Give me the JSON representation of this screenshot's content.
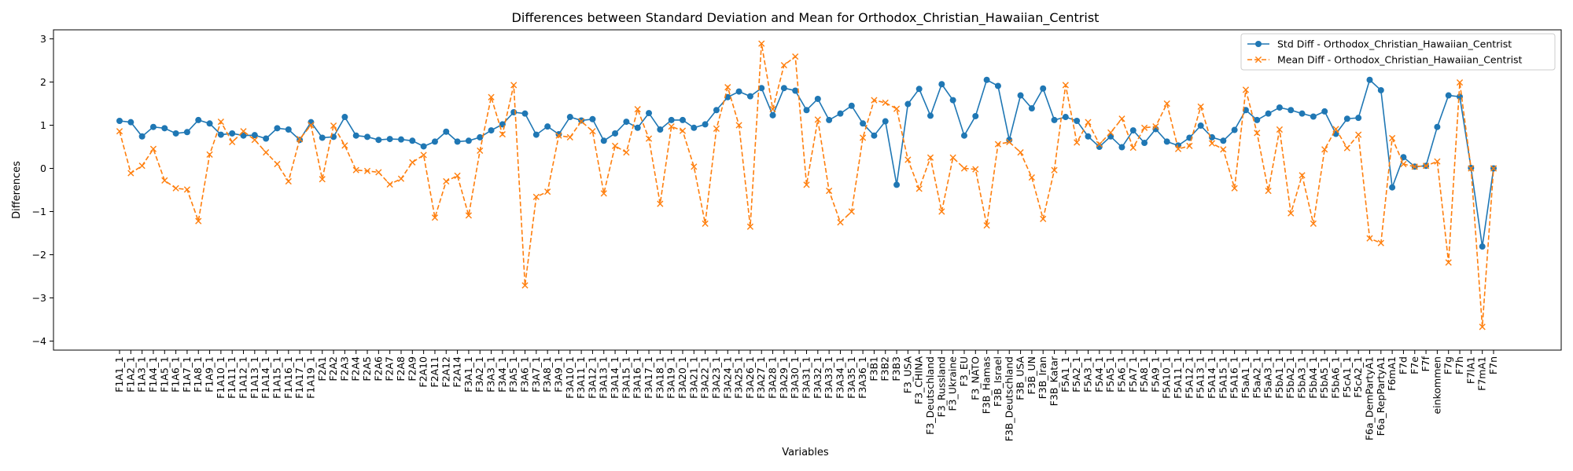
{
  "chart_data": {
    "type": "line",
    "title": "Differences between Standard Deviation and Mean for Orthodox_Christian_Hawaiian_Centrist",
    "xlabel": "Variables",
    "ylabel": "Differences",
    "ylim": [
      -4,
      3
    ],
    "yticks": [
      -4,
      -3,
      -2,
      -1,
      0,
      1,
      2,
      3
    ],
    "legend_position": "top-right",
    "grid": false,
    "categories": [
      "F1A1_1",
      "F1A2_1",
      "F1A3_1",
      "F1A4_1",
      "F1A5_1",
      "F1A6_1",
      "F1A7_1",
      "F1A8_1",
      "F1A9_1",
      "F1A10_1",
      "F1A11_1",
      "F1A12_1",
      "F1A13_1",
      "F1A14_1",
      "F1A15_1",
      "F1A16_1",
      "F1A17_1",
      "F1A19_1",
      "F2A1",
      "F2A2",
      "F2A3",
      "F2A4",
      "F2A5",
      "F2A6",
      "F2A7",
      "F2A8",
      "F2A9",
      "F2A10",
      "F2A11",
      "F2A12",
      "F2A14",
      "F3A1_1",
      "F3A2_1",
      "F3A3_1",
      "F3A4_1",
      "F3A5_1",
      "F3A6_1",
      "F3A7_1",
      "F3A8_1",
      "F3A9_1",
      "F3A10_1",
      "F3A11_1",
      "F3A12_1",
      "F3A13_1",
      "F3A14_1",
      "F3A15_1",
      "F3A16_1",
      "F3A17_1",
      "F3A18_1",
      "F3A19_1",
      "F3A20_1",
      "F3A21_1",
      "F3A22_1",
      "F3A23_1",
      "F3A24_1",
      "F3A25_1",
      "F3A26_1",
      "F3A27_1",
      "F3A28_1",
      "F3A29_1",
      "F3A30_1",
      "F3A31_1",
      "F3A32_1",
      "F3A33_1",
      "F3A34_1",
      "F3A35_1",
      "F3A36_1",
      "F3B1",
      "F3B2",
      "F3B3",
      "F3_USA",
      "F3_CHINA",
      "F3_Deutschland",
      "F3_Russland",
      "F3_Ukraine",
      "F3_EU",
      "F3_NATO",
      "F3B_Hamas",
      "F3B_Israel",
      "F3B_Deutschland",
      "F3B_USA",
      "F3B_UN",
      "F3B_Iran",
      "F3B_Katar",
      "F5A1_1",
      "F5A2_1",
      "F5A3_1",
      "F5A4_1",
      "F5A5_1",
      "F5A6_1",
      "F5A7_1",
      "F5A8_1",
      "F5A9_1",
      "F5A10_1",
      "F5A11_1",
      "F5A12_1",
      "F5A13_1",
      "F5A14_1",
      "F5A15_1",
      "F5A16_1",
      "F5aA1_1",
      "F5aA2_1",
      "F5aA3_1",
      "F5bA1_1",
      "F5bA2_1",
      "F5bA3_1",
      "F5bA4_1",
      "F5bA5_1",
      "F5bA6_1",
      "F5cA1_1",
      "F5cA2_1",
      "F6a_DemPartyA1",
      "F6a_RepPartyA1",
      "F6mA1",
      "F7d",
      "F7e",
      "F7f",
      "einkommen",
      "F7g",
      "F7h",
      "F7lA1",
      "F7mA1",
      "F7n"
    ],
    "series": [
      {
        "name": "Std Diff - Orthodox_Christian_Hawaiian_Centrist",
        "color": "#1f77b4",
        "marker": "circle",
        "linestyle": "solid",
        "values": [
          1.1,
          1.07,
          0.74,
          0.96,
          0.93,
          0.81,
          0.84,
          1.12,
          1.04,
          0.78,
          0.81,
          0.76,
          0.77,
          0.69,
          0.93,
          0.9,
          0.66,
          1.07,
          0.71,
          0.73,
          1.19,
          0.76,
          0.73,
          0.66,
          0.68,
          0.67,
          0.64,
          0.51,
          0.62,
          0.85,
          0.62,
          0.64,
          0.72,
          0.88,
          1.02,
          1.3,
          1.27,
          0.78,
          0.97,
          0.79,
          1.19,
          1.11,
          1.14,
          0.64,
          0.81,
          1.08,
          0.94,
          1.28,
          0.9,
          1.12,
          1.12,
          0.94,
          1.02,
          1.35,
          1.65,
          1.78,
          1.67,
          1.86,
          1.23,
          1.86,
          1.8,
          1.35,
          1.61,
          1.12,
          1.27,
          1.45,
          1.04,
          0.76,
          1.09,
          -0.38,
          1.49,
          1.84,
          1.22,
          1.95,
          1.58,
          0.76,
          1.21,
          2.05,
          1.91,
          0.66,
          1.69,
          1.39,
          1.85,
          1.12,
          1.19,
          1.1,
          0.74,
          0.5,
          0.74,
          0.49,
          0.88,
          0.59,
          0.91,
          0.62,
          0.53,
          0.71,
          0.99,
          0.72,
          0.64,
          0.89,
          1.35,
          1.12,
          1.27,
          1.41,
          1.35,
          1.27,
          1.2,
          1.32,
          0.8,
          1.15,
          1.17,
          2.05,
          1.81,
          -0.44,
          0.26,
          0.04,
          0.06,
          0.96,
          1.69,
          1.66,
          0.01,
          -1.81,
          0.0
        ]
      },
      {
        "name": "Mean Diff - Orthodox_Christian_Hawaiian_Centrist",
        "color": "#ff7f0e",
        "marker": "x",
        "linestyle": "dashed",
        "values": [
          0.86,
          -0.11,
          0.06,
          0.45,
          -0.28,
          -0.46,
          -0.49,
          -1.22,
          0.32,
          1.08,
          0.61,
          0.86,
          0.66,
          0.37,
          0.1,
          -0.3,
          0.68,
          1.0,
          -0.25,
          0.99,
          0.53,
          -0.04,
          -0.06,
          -0.09,
          -0.37,
          -0.24,
          0.14,
          0.31,
          -1.14,
          -0.3,
          -0.17,
          -1.09,
          0.41,
          1.65,
          0.79,
          1.93,
          -2.71,
          -0.66,
          -0.54,
          0.76,
          0.72,
          1.09,
          0.86,
          -0.58,
          0.52,
          0.37,
          1.37,
          0.69,
          -0.82,
          0.97,
          0.87,
          0.04,
          -1.28,
          0.92,
          1.88,
          1.0,
          -1.35,
          2.89,
          1.37,
          2.39,
          2.59,
          -0.38,
          1.13,
          -0.52,
          -1.25,
          -1.0,
          0.71,
          1.58,
          1.52,
          1.38,
          0.2,
          -0.47,
          0.25,
          -1.0,
          0.25,
          0.0,
          -0.02,
          -1.32,
          0.56,
          0.61,
          0.37,
          -0.21,
          -1.17,
          -0.04,
          1.93,
          0.6,
          1.07,
          0.56,
          0.83,
          1.15,
          0.48,
          0.94,
          0.97,
          1.5,
          0.45,
          0.52,
          1.43,
          0.58,
          0.44,
          -0.46,
          1.82,
          0.82,
          -0.52,
          0.9,
          -1.04,
          -0.16,
          -1.28,
          0.44,
          0.91,
          0.47,
          0.78,
          -1.62,
          -1.73,
          0.7,
          0.1,
          0.04,
          0.06,
          0.16,
          -2.18,
          1.99,
          0.0,
          -3.67,
          0.0
        ]
      }
    ]
  }
}
